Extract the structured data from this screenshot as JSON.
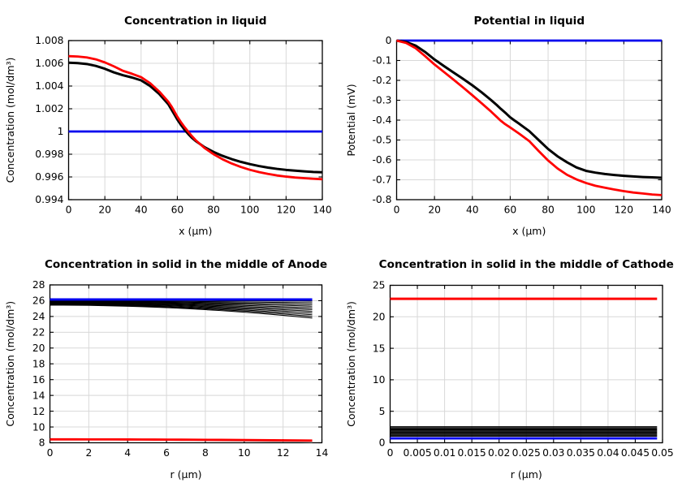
{
  "page": {
    "background": "#ffffff",
    "grid_color": "#d8d8d8",
    "axis_color": "#000000"
  },
  "chart_data": [
    {
      "type": "line",
      "title": "Concentration in liquid",
      "xlabel": "x (µm)",
      "ylabel": "Concentration (mol/dm³)",
      "x_range": [
        0,
        140
      ],
      "y_range": [
        0.994,
        1.008
      ],
      "grid": true,
      "legend": "none",
      "x_tick_vals": [
        0,
        20,
        40,
        60,
        80,
        100,
        120,
        140
      ],
      "x_tick_labels": [
        "0",
        "20",
        "40",
        "60",
        "80",
        "100",
        "120",
        "140"
      ],
      "y_tick_vals": [
        1.008,
        1.006,
        1.004,
        1.002,
        1,
        0.998,
        0.996,
        0.994
      ],
      "y_tick_labels": [
        "1.008",
        "1.006",
        "1.004",
        "1.002",
        "1",
        "0.998",
        "0.996",
        "0.994"
      ],
      "series": [
        {
          "name": "reference-line",
          "color": "#0000ee",
          "width": 2.8,
          "kind": "hline",
          "y": 1,
          "x0": 0,
          "x1": 140
        },
        {
          "name": "black-concentration-curve",
          "color": "#000000",
          "width": 3.0,
          "kind": "points",
          "pts": [
            [
              0,
              1.00605
            ],
            [
              5,
              1.00602
            ],
            [
              10,
              1.00594
            ],
            [
              15,
              1.00577
            ],
            [
              20,
              1.00552
            ],
            [
              25,
              1.0052
            ],
            [
              30,
              1.00495
            ],
            [
              35,
              1.00475
            ],
            [
              40,
              1.0045
            ],
            [
              45,
              1.004
            ],
            [
              50,
              1.0033
            ],
            [
              55,
              1.0024
            ],
            [
              58,
              1.0016
            ],
            [
              60,
              1.00105
            ],
            [
              62,
              1.00058
            ],
            [
              64,
              1.00015
            ],
            [
              66,
              0.99978
            ],
            [
              68,
              0.99945
            ],
            [
              70,
              0.99918
            ],
            [
              75,
              0.99862
            ],
            [
              80,
              0.9982
            ],
            [
              85,
              0.99785
            ],
            [
              90,
              0.99757
            ],
            [
              95,
              0.99733
            ],
            [
              100,
              0.99713
            ],
            [
              105,
              0.99696
            ],
            [
              110,
              0.99682
            ],
            [
              115,
              0.99671
            ],
            [
              120,
              0.99662
            ],
            [
              125,
              0.99655
            ],
            [
              130,
              0.99649
            ],
            [
              135,
              0.99644
            ],
            [
              140,
              0.99641
            ]
          ]
        },
        {
          "name": "red-concentration-curve",
          "color": "#ff0000",
          "width": 2.8,
          "kind": "points",
          "pts": [
            [
              0,
              1.00663
            ],
            [
              5,
              1.0066
            ],
            [
              10,
              1.00652
            ],
            [
              15,
              1.00635
            ],
            [
              20,
              1.00608
            ],
            [
              25,
              1.00573
            ],
            [
              30,
              1.00534
            ],
            [
              35,
              1.00508
            ],
            [
              40,
              1.00478
            ],
            [
              45,
              1.00425
            ],
            [
              50,
              1.00352
            ],
            [
              55,
              1.00262
            ],
            [
              57,
              1.00215
            ],
            [
              60,
              1.0013
            ],
            [
              62,
              1.00082
            ],
            [
              64,
              1.00038
            ],
            [
              66,
              0.99998
            ],
            [
              68,
              0.9996
            ],
            [
              70,
              0.99925
            ],
            [
              75,
              0.99855
            ],
            [
              80,
              0.998
            ],
            [
              85,
              0.99755
            ],
            [
              90,
              0.99718
            ],
            [
              95,
              0.99688
            ],
            [
              100,
              0.99663
            ],
            [
              105,
              0.99643
            ],
            [
              110,
              0.99627
            ],
            [
              115,
              0.99613
            ],
            [
              120,
              0.99603
            ],
            [
              125,
              0.99595
            ],
            [
              130,
              0.99589
            ],
            [
              135,
              0.99584
            ],
            [
              140,
              0.9958
            ]
          ]
        }
      ]
    },
    {
      "type": "line",
      "title": "Potential in liquid",
      "xlabel": "x (µm)",
      "ylabel": "Potential (mV)",
      "x_range": [
        0,
        140
      ],
      "y_range": [
        -0.8,
        0
      ],
      "grid": true,
      "legend": "none",
      "x_tick_vals": [
        0,
        20,
        40,
        60,
        80,
        100,
        120,
        140
      ],
      "x_tick_labels": [
        "0",
        "20",
        "40",
        "60",
        "80",
        "100",
        "120",
        "140"
      ],
      "y_tick_vals": [
        0,
        -0.1,
        -0.2,
        -0.3,
        -0.4,
        -0.5,
        -0.6,
        -0.7,
        -0.8
      ],
      "y_tick_labels": [
        "0",
        "-0.1",
        "-0.2",
        "-0.3",
        "-0.4",
        "-0.5",
        "-0.6",
        "-0.7",
        "-0.8"
      ],
      "series": [
        {
          "name": "reference-line",
          "color": "#0000ee",
          "width": 2.8,
          "kind": "hline",
          "y": 0,
          "x0": 0,
          "x1": 140
        },
        {
          "name": "black-potential-curve",
          "color": "#000000",
          "width": 3.0,
          "kind": "points",
          "pts": [
            [
              0,
              0
            ],
            [
              5,
              -0.007
            ],
            [
              10,
              -0.025
            ],
            [
              15,
              -0.057
            ],
            [
              20,
              -0.095
            ],
            [
              25,
              -0.128
            ],
            [
              30,
              -0.16
            ],
            [
              35,
              -0.192
            ],
            [
              40,
              -0.225
            ],
            [
              45,
              -0.261
            ],
            [
              50,
              -0.3
            ],
            [
              53,
              -0.325
            ],
            [
              55,
              -0.343
            ],
            [
              58,
              -0.368
            ],
            [
              60,
              -0.386
            ],
            [
              62,
              -0.4
            ],
            [
              65,
              -0.42
            ],
            [
              70,
              -0.455
            ],
            [
              75,
              -0.5
            ],
            [
              80,
              -0.545
            ],
            [
              85,
              -0.582
            ],
            [
              90,
              -0.612
            ],
            [
              95,
              -0.638
            ],
            [
              100,
              -0.655
            ],
            [
              105,
              -0.664
            ],
            [
              110,
              -0.671
            ],
            [
              115,
              -0.676
            ],
            [
              120,
              -0.68
            ],
            [
              125,
              -0.683
            ],
            [
              130,
              -0.686
            ],
            [
              135,
              -0.688
            ],
            [
              140,
              -0.69
            ]
          ]
        },
        {
          "name": "red-potential-curve",
          "color": "#ff0000",
          "width": 2.8,
          "kind": "points",
          "pts": [
            [
              0,
              0
            ],
            [
              5,
              -0.012
            ],
            [
              10,
              -0.038
            ],
            [
              15,
              -0.078
            ],
            [
              20,
              -0.12
            ],
            [
              25,
              -0.158
            ],
            [
              30,
              -0.196
            ],
            [
              35,
              -0.235
            ],
            [
              40,
              -0.275
            ],
            [
              45,
              -0.316
            ],
            [
              50,
              -0.358
            ],
            [
              53,
              -0.385
            ],
            [
              55,
              -0.403
            ],
            [
              57,
              -0.418
            ],
            [
              60,
              -0.437
            ],
            [
              62,
              -0.45
            ],
            [
              65,
              -0.47
            ],
            [
              70,
              -0.505
            ],
            [
              75,
              -0.555
            ],
            [
              80,
              -0.603
            ],
            [
              85,
              -0.643
            ],
            [
              90,
              -0.675
            ],
            [
              95,
              -0.698
            ],
            [
              100,
              -0.716
            ],
            [
              105,
              -0.73
            ],
            [
              110,
              -0.74
            ],
            [
              115,
              -0.749
            ],
            [
              120,
              -0.757
            ],
            [
              125,
              -0.764
            ],
            [
              130,
              -0.769
            ],
            [
              135,
              -0.774
            ],
            [
              140,
              -0.777
            ]
          ]
        }
      ]
    },
    {
      "type": "line",
      "title": "Concentration in solid in the middle of Anode",
      "xlabel": "r (µm)",
      "ylabel": "Concentration (mol/dm³)",
      "x_range": [
        0,
        14
      ],
      "y_range": [
        8,
        28
      ],
      "grid": true,
      "legend": "none",
      "x_tick_vals": [
        0,
        2,
        4,
        6,
        8,
        10,
        12,
        14
      ],
      "x_tick_labels": [
        "0",
        "2",
        "4",
        "6",
        "8",
        "10",
        "12",
        "14"
      ],
      "y_tick_vals": [
        28,
        26,
        24,
        22,
        20,
        18,
        16,
        14,
        12,
        10,
        8
      ],
      "y_tick_labels": [
        "28",
        "26",
        "24",
        "22",
        "20",
        "18",
        "16",
        "14",
        "12",
        "10",
        "8"
      ],
      "series": [
        {
          "name": "black-time-fan",
          "color": "#000000",
          "width": 1.1,
          "kind": "fan",
          "x_end": 13.5,
          "exp": 2,
          "lines": [
            [
              26.04,
              25.95
            ],
            [
              25.98,
              25.73
            ],
            [
              25.92,
              25.51
            ],
            [
              25.86,
              25.3
            ],
            [
              25.8,
              25.08
            ],
            [
              25.74,
              24.87
            ],
            [
              25.68,
              24.65
            ],
            [
              25.62,
              24.44
            ],
            [
              25.56,
              24.22
            ],
            [
              25.5,
              24.01
            ],
            [
              25.44,
              23.8
            ]
          ]
        },
        {
          "name": "max-concentration-line",
          "color": "#0000ee",
          "width": 3.0,
          "kind": "hline",
          "y": 26.15,
          "x0": 0,
          "x1": 13.5
        },
        {
          "name": "gray-curve",
          "color": "#a8a8a8",
          "width": 1.6,
          "kind": "fan",
          "x_end": 13.5,
          "exp": 2,
          "lines": [
            [
              8.4,
              8.1
            ]
          ]
        },
        {
          "name": "red-curve",
          "color": "#ff0000",
          "width": 2.8,
          "kind": "fan",
          "x_end": 13.5,
          "exp": 2,
          "lines": [
            [
              8.43,
              8.28
            ]
          ]
        }
      ]
    },
    {
      "type": "line",
      "title": "Concentration in solid in the middle of Cathode",
      "xlabel": "r (µm)",
      "ylabel": "Concentration (mol/dm³)",
      "x_range": [
        0,
        0.05
      ],
      "y_range": [
        0,
        25
      ],
      "grid": true,
      "legend": "none",
      "x_tick_vals": [
        0,
        0.005,
        0.01,
        0.015,
        0.02,
        0.025,
        0.03,
        0.035,
        0.04,
        0.045,
        0.05
      ],
      "x_tick_labels": [
        "0",
        "0.005",
        "0.01",
        "0.015",
        "0.02",
        "0.025",
        "0.03",
        "0.035",
        "0.04",
        "0.045",
        "0.05"
      ],
      "y_tick_vals": [
        25,
        20,
        15,
        10,
        5,
        0
      ],
      "y_tick_labels": [
        "25",
        "20",
        "15",
        "10",
        "5",
        "0"
      ],
      "series": [
        {
          "name": "red-max-line",
          "color": "#ff0000",
          "width": 3.0,
          "kind": "hline",
          "y": 22.85,
          "x0": 0,
          "x1": 0.049
        },
        {
          "name": "black-time-band",
          "color": "#000000",
          "width": 1.2,
          "kind": "hlines",
          "x0": 0,
          "x1": 0.049,
          "ys": [
            2.55,
            2.38,
            2.21,
            2.05,
            1.88,
            1.71,
            1.55,
            1.38,
            1.21,
            1.05
          ]
        },
        {
          "name": "blue-min-line",
          "color": "#0000ee",
          "width": 2.8,
          "kind": "hline",
          "y": 0.7,
          "x0": 0,
          "x1": 0.049
        }
      ]
    }
  ]
}
